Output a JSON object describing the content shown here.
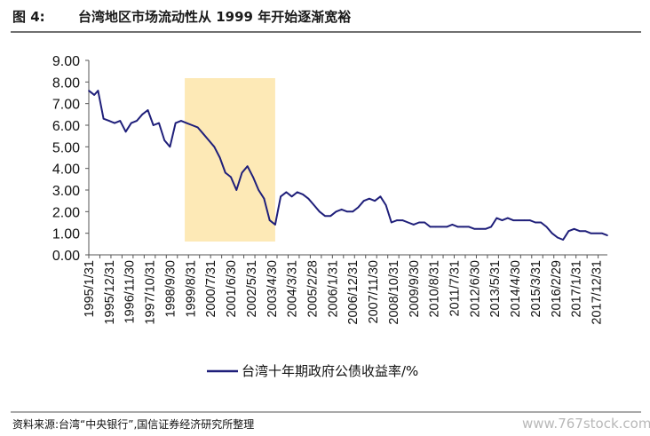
{
  "header": {
    "figure_label": "图 4:",
    "title": "台湾地区市场流动性从 1999 年开始逐渐宽裕"
  },
  "footer": {
    "source": "资料来源:台湾“中央银行”,国信证券经济研究所整理",
    "watermark": "www.767stock.com"
  },
  "colors": {
    "line": "#1f1f7a",
    "highlight": "#fde9b6",
    "title_rule": "#1a1a1a"
  },
  "chart_data": {
    "type": "line",
    "title": "",
    "xlabel": "",
    "ylabel": "",
    "ylim": [
      0,
      9
    ],
    "yticks": [
      "0.00",
      "1.00",
      "2.00",
      "3.00",
      "4.00",
      "5.00",
      "6.00",
      "7.00",
      "8.00",
      "9.00"
    ],
    "xticks": [
      "1995/1/31",
      "1995/12/31",
      "1996/11/30",
      "1997/10/31",
      "1998/9/30",
      "1999/8/31",
      "2000/7/31",
      "2001/6/30",
      "2002/5/31",
      "2003/4/30",
      "2004/3/31",
      "2005/2/28",
      "2006/1/31",
      "2006/12/31",
      "2007/11/30",
      "2008/10/31",
      "2009/9/30",
      "2010/8/31",
      "2011/7/31",
      "2012/6/30",
      "2013/5/31",
      "2014/4/30",
      "2015/3/31",
      "2016/2/29",
      "2017/1/31",
      "2017/12/31"
    ],
    "x_range": [
      "1995/1/31",
      "2018/6/30"
    ],
    "highlight_band": {
      "start": "1999/5/31",
      "end": "2003/6/30"
    },
    "grid": false,
    "legend_position": "bottom",
    "series": [
      {
        "name": "台湾十年期政府公债收益率/%",
        "x": [
          "1995/1",
          "1995/4",
          "1995/6",
          "1995/9",
          "1995/12",
          "1996/3",
          "1996/6",
          "1996/9",
          "1996/12",
          "1997/3",
          "1997/6",
          "1997/9",
          "1997/12",
          "1998/3",
          "1998/6",
          "1998/9",
          "1998/12",
          "1999/3",
          "1999/6",
          "1999/9",
          "1999/12",
          "2000/3",
          "2000/6",
          "2000/9",
          "2000/12",
          "2001/3",
          "2001/6",
          "2001/9",
          "2001/12",
          "2002/3",
          "2002/6",
          "2002/9",
          "2002/12",
          "2003/3",
          "2003/6",
          "2003/9",
          "2003/12",
          "2004/3",
          "2004/6",
          "2004/9",
          "2004/12",
          "2005/3",
          "2005/6",
          "2005/9",
          "2005/12",
          "2006/3",
          "2006/6",
          "2006/9",
          "2006/12",
          "2007/3",
          "2007/6",
          "2007/9",
          "2007/12",
          "2008/3",
          "2008/6",
          "2008/9",
          "2008/12",
          "2009/3",
          "2009/6",
          "2009/9",
          "2009/12",
          "2010/3",
          "2010/6",
          "2010/9",
          "2010/12",
          "2011/3",
          "2011/6",
          "2011/9",
          "2011/12",
          "2012/3",
          "2012/6",
          "2012/9",
          "2012/12",
          "2013/3",
          "2013/6",
          "2013/9",
          "2013/12",
          "2014/3",
          "2014/6",
          "2014/9",
          "2014/12",
          "2015/3",
          "2015/6",
          "2015/9",
          "2015/12",
          "2016/3",
          "2016/6",
          "2016/9",
          "2016/12",
          "2017/3",
          "2017/6",
          "2017/9",
          "2017/12",
          "2018/3",
          "2018/6"
        ],
        "values": [
          7.6,
          7.4,
          7.6,
          6.3,
          6.2,
          6.1,
          6.2,
          5.7,
          6.1,
          6.2,
          6.5,
          6.7,
          6.0,
          6.1,
          5.3,
          5.0,
          6.1,
          6.2,
          6.1,
          6.0,
          5.9,
          5.6,
          5.3,
          5.0,
          4.5,
          3.8,
          3.6,
          3.0,
          3.8,
          4.1,
          3.6,
          3.0,
          2.6,
          1.6,
          1.4,
          2.7,
          2.9,
          2.7,
          2.9,
          2.8,
          2.6,
          2.3,
          2.0,
          1.8,
          1.8,
          2.0,
          2.1,
          2.0,
          2.0,
          2.2,
          2.5,
          2.6,
          2.5,
          2.7,
          2.3,
          1.5,
          1.6,
          1.6,
          1.5,
          1.4,
          1.5,
          1.5,
          1.3,
          1.3,
          1.3,
          1.3,
          1.4,
          1.3,
          1.3,
          1.3,
          1.2,
          1.2,
          1.2,
          1.3,
          1.7,
          1.6,
          1.7,
          1.6,
          1.6,
          1.6,
          1.6,
          1.5,
          1.5,
          1.3,
          1.0,
          0.8,
          0.7,
          1.1,
          1.2,
          1.1,
          1.1,
          1.0,
          1.0,
          1.0,
          0.9
        ]
      }
    ]
  }
}
